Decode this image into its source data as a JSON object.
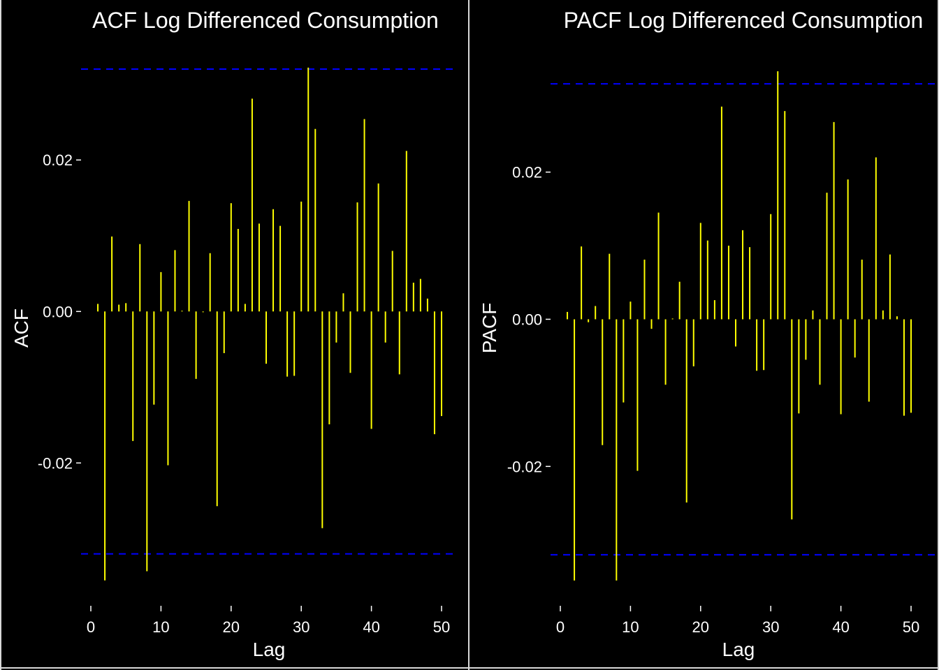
{
  "chart_data": [
    {
      "type": "bar",
      "title": "ACF Log Differenced Consumption",
      "xlabel": "Lag",
      "ylabel": "ACF",
      "xlim": [
        0,
        50
      ],
      "ylim": [
        -0.036,
        0.032
      ],
      "xticks": [
        0,
        10,
        20,
        30,
        40,
        50
      ],
      "xtick_labels": [
        "0",
        "10",
        "20",
        "30",
        "40",
        "50"
      ],
      "yticks": [
        -0.02,
        0.0,
        0.02
      ],
      "ytick_labels": [
        "-0.02",
        "0.00",
        "0.02"
      ],
      "confidence_band": 0.032,
      "grid": false,
      "series": [
        {
          "x": [
            1,
            2,
            3,
            4,
            5,
            6,
            7,
            8,
            9,
            10,
            11,
            12,
            13,
            14,
            15,
            16,
            17,
            18,
            19,
            20,
            21,
            22,
            23,
            24,
            25,
            26,
            27,
            28,
            29,
            30,
            31,
            32,
            33,
            34,
            35,
            36,
            37,
            38,
            39,
            40,
            41,
            42,
            43,
            44,
            45,
            46,
            47,
            48,
            49,
            50
          ],
          "values": [
            0.001,
            -0.0355,
            0.0099,
            0.0009,
            0.0011,
            -0.0171,
            0.0089,
            -0.0343,
            -0.0123,
            0.0052,
            -0.0203,
            0.0081,
            0.0001,
            0.0146,
            -0.0089,
            -0.0001,
            0.0077,
            -0.0257,
            -0.0055,
            0.0143,
            0.0109,
            0.001,
            0.0281,
            0.0116,
            -0.0069,
            0.0135,
            0.0113,
            -0.0086,
            -0.0085,
            0.0145,
            0.0322,
            0.0241,
            -0.0286,
            -0.0149,
            -0.0041,
            0.0024,
            -0.0081,
            0.0144,
            0.0254,
            -0.0155,
            0.0169,
            -0.0041,
            0.008,
            -0.0083,
            0.0212,
            0.0038,
            0.0043,
            0.0017,
            -0.0162,
            -0.0138
          ]
        }
      ],
      "colors": {
        "bars": "#ffff00",
        "band": "#0000ff",
        "background": "#000000",
        "text": "#ffffff"
      }
    },
    {
      "type": "bar",
      "title": "PACF Log Differenced Consumption",
      "xlabel": "Lag",
      "ylabel": "PACF",
      "xlim": [
        0,
        50
      ],
      "ylim": [
        -0.036,
        0.034
      ],
      "xticks": [
        0,
        10,
        20,
        30,
        40,
        50
      ],
      "xtick_labels": [
        "0",
        "10",
        "20",
        "30",
        "40",
        "50"
      ],
      "yticks": [
        -0.02,
        0.0,
        0.02
      ],
      "ytick_labels": [
        "-0.02",
        "0.00",
        "0.02"
      ],
      "confidence_band": 0.032,
      "grid": false,
      "series": [
        {
          "x": [
            1,
            2,
            3,
            4,
            5,
            6,
            7,
            8,
            9,
            10,
            11,
            12,
            13,
            14,
            15,
            16,
            17,
            18,
            19,
            20,
            21,
            22,
            23,
            24,
            25,
            26,
            27,
            28,
            29,
            30,
            31,
            32,
            33,
            34,
            35,
            36,
            37,
            38,
            39,
            40,
            41,
            42,
            43,
            44,
            45,
            46,
            47,
            48,
            49,
            50
          ],
          "values": [
            0.001,
            -0.0355,
            0.0099,
            -0.0004,
            0.0018,
            -0.0171,
            0.0089,
            -0.0355,
            -0.0113,
            0.0024,
            -0.0206,
            0.0081,
            -0.0013,
            0.0145,
            -0.0089,
            0.0001,
            0.0051,
            -0.0249,
            -0.0064,
            0.0131,
            0.0107,
            0.0026,
            0.0289,
            0.01,
            -0.0037,
            0.0121,
            0.0098,
            -0.007,
            -0.0069,
            0.0143,
            0.0337,
            0.0283,
            -0.0272,
            -0.0128,
            -0.0055,
            0.0012,
            -0.0089,
            0.0172,
            0.0268,
            -0.0129,
            0.019,
            -0.0052,
            0.0081,
            -0.0112,
            0.022,
            0.0012,
            0.0088,
            0.0004,
            -0.0131,
            -0.0127
          ]
        }
      ],
      "colors": {
        "bars": "#ffff00",
        "band": "#0000ff",
        "background": "#000000",
        "text": "#ffffff"
      }
    }
  ]
}
